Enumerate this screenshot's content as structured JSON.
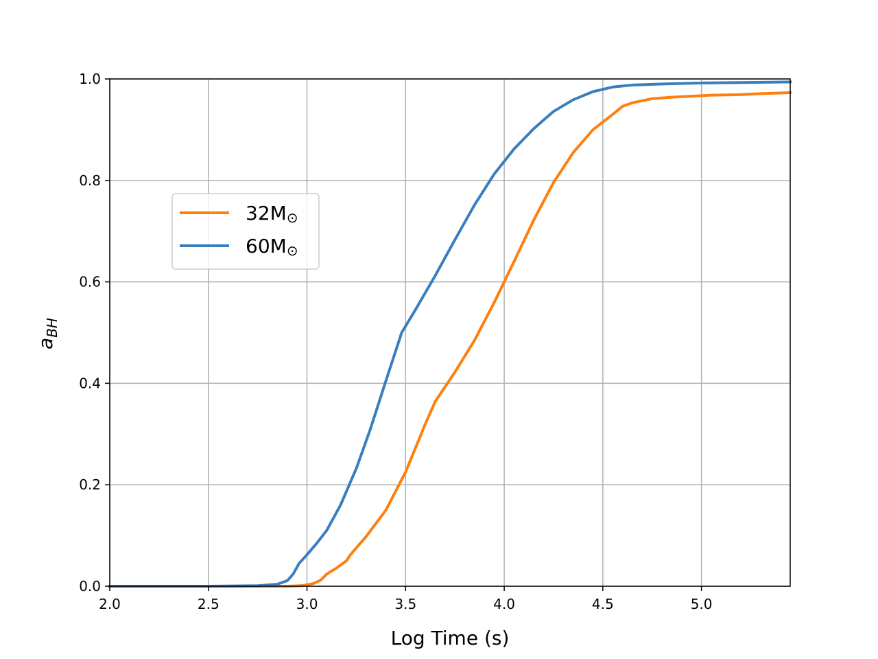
{
  "chart_data": {
    "type": "line",
    "xlabel": "Log Time (s)",
    "ylabel_main": "a",
    "ylabel_sub": "BH",
    "xlim": [
      2.0,
      5.45
    ],
    "ylim": [
      0.0,
      1.0
    ],
    "xticks": [
      2.0,
      2.5,
      3.0,
      3.5,
      4.0,
      4.5,
      5.0
    ],
    "xtick_labels": [
      "2.0",
      "2.5",
      "3.0",
      "3.5",
      "4.0",
      "4.5",
      "5.0"
    ],
    "yticks": [
      0.0,
      0.2,
      0.4,
      0.6,
      0.8,
      1.0
    ],
    "ytick_labels": [
      "0.0",
      "0.2",
      "0.4",
      "0.6",
      "0.8",
      "1.0"
    ],
    "grid": true,
    "legend_position": "upper-left",
    "series": [
      {
        "name_main": "32M",
        "name_sym": "⊙",
        "color": "#ff7f0e",
        "x": [
          2.0,
          2.5,
          2.9,
          2.97,
          3.03,
          3.07,
          3.1,
          3.15,
          3.2,
          3.22,
          3.3,
          3.4,
          3.5,
          3.6,
          3.65,
          3.75,
          3.85,
          3.95,
          4.05,
          4.15,
          4.25,
          4.35,
          4.45,
          4.55,
          4.6,
          4.65,
          4.75,
          4.85,
          4.95,
          5.05,
          5.2,
          5.3,
          5.45
        ],
        "y": [
          0.0,
          0.0,
          0.0,
          0.001,
          0.005,
          0.012,
          0.024,
          0.036,
          0.05,
          0.062,
          0.098,
          0.15,
          0.225,
          0.32,
          0.364,
          0.422,
          0.485,
          0.56,
          0.64,
          0.722,
          0.796,
          0.855,
          0.9,
          0.93,
          0.946,
          0.953,
          0.961,
          0.964,
          0.966,
          0.968,
          0.969,
          0.971,
          0.973
        ]
      },
      {
        "name_main": "60M",
        "name_sym": "⊙",
        "color": "#3a7ebf",
        "x": [
          2.0,
          2.5,
          2.75,
          2.85,
          2.9,
          2.93,
          2.96,
          3.0,
          3.05,
          3.1,
          3.17,
          3.25,
          3.32,
          3.4,
          3.48,
          3.55,
          3.65,
          3.75,
          3.85,
          3.95,
          4.05,
          4.15,
          4.25,
          4.35,
          4.45,
          4.55,
          4.65,
          4.8,
          5.0,
          5.2,
          5.45
        ],
        "y": [
          0.0,
          0.0,
          0.001,
          0.004,
          0.011,
          0.024,
          0.045,
          0.062,
          0.085,
          0.11,
          0.16,
          0.232,
          0.308,
          0.405,
          0.5,
          0.545,
          0.612,
          0.683,
          0.752,
          0.813,
          0.862,
          0.902,
          0.936,
          0.959,
          0.975,
          0.984,
          0.988,
          0.99,
          0.992,
          0.993,
          0.994
        ]
      }
    ]
  }
}
